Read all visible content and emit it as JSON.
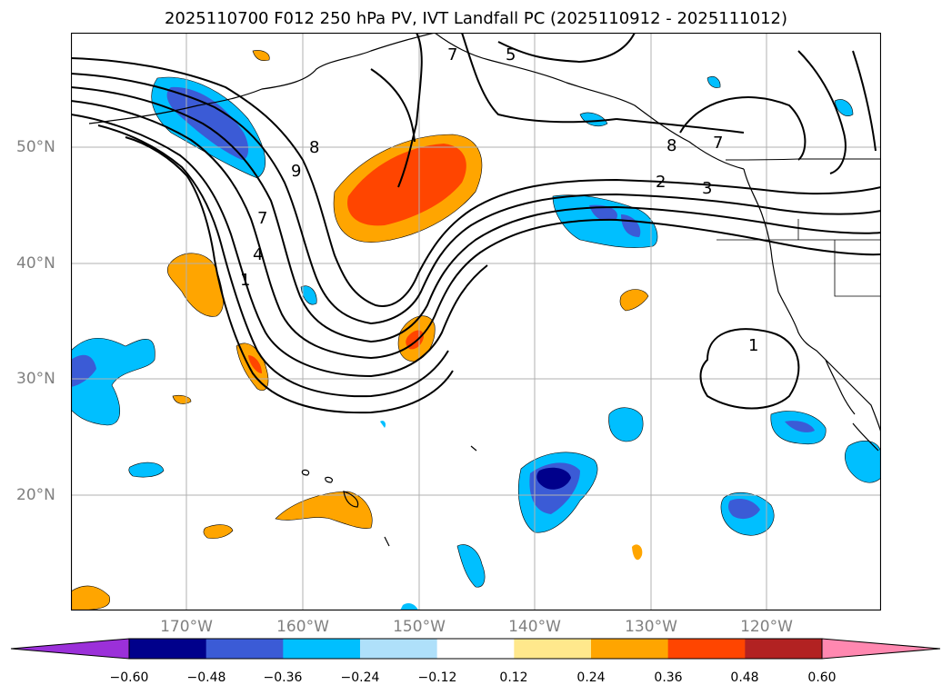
{
  "title": "2025110700 F012 250 hPa PV, IVT Landfall PC (2025110912 - 2025111012)",
  "map": {
    "lat_labels": [
      "50°N",
      "40°N",
      "30°N",
      "20°N"
    ],
    "lon_labels": [
      "170°W",
      "160°W",
      "150°W",
      "140°W",
      "130°W",
      "120°W"
    ],
    "contour_labels": [
      "5",
      "7",
      "8",
      "9",
      "7",
      "4",
      "1",
      "8",
      "2",
      "3",
      "1",
      "7"
    ],
    "colors": {
      "contour": "#000000",
      "grid": "#b0b0b0",
      "coast": "#000000"
    }
  },
  "colorbar": {
    "colors": [
      "#9b30d9",
      "#00008b",
      "#3b5bd6",
      "#00bfff",
      "#afe0fa",
      "#ffffff",
      "#ffe88c",
      "#ffa500",
      "#ff4500",
      "#b22222",
      "#ff88b0"
    ],
    "tick_labels": [
      "−0.60",
      "−0.48",
      "−0.36",
      "−0.24",
      "−0.12",
      "0.12",
      "0.24",
      "0.36",
      "0.48",
      "0.60"
    ]
  }
}
